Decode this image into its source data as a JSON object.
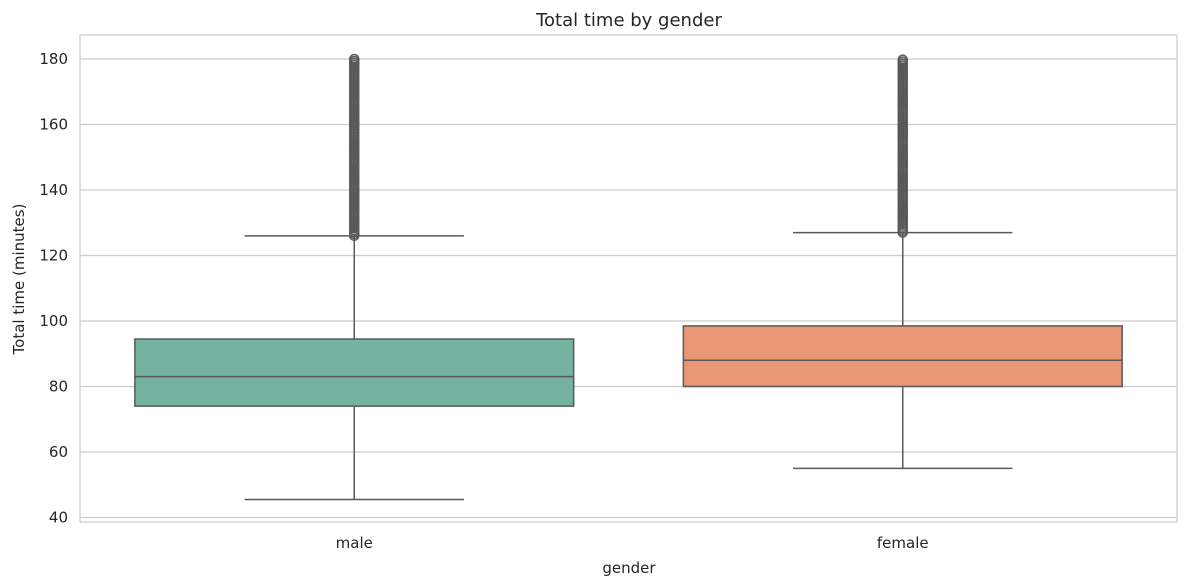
{
  "chart_data": {
    "type": "box",
    "title": "Total time by gender",
    "xlabel": "gender",
    "ylabel": "Total time (minutes)",
    "ylim": [
      38.5,
      186.5
    ],
    "yticks": [
      40,
      60,
      80,
      100,
      120,
      140,
      160,
      180
    ],
    "ytick_labels": [
      "40",
      "60",
      "80",
      "100",
      "120",
      "140",
      "160",
      "180"
    ],
    "categories": [
      "male",
      "female"
    ],
    "grid": true,
    "series": [
      {
        "category": "male",
        "color": "#73b3a0",
        "whisker_low": 45.5,
        "q1": 74,
        "median": 83,
        "q3": 94.5,
        "whisker_high": 126,
        "outliers_from": 126,
        "outliers_to": 180
      },
      {
        "category": "female",
        "color": "#e99675",
        "whisker_low": 55,
        "q1": 80,
        "median": 88,
        "q3": 98.5,
        "whisker_high": 127,
        "outliers_from": 127,
        "outliers_to": 180
      }
    ],
    "colors": {
      "line": "#595959",
      "grid": "#cccccc",
      "spine": "#cccccc",
      "text": "#262626"
    }
  }
}
